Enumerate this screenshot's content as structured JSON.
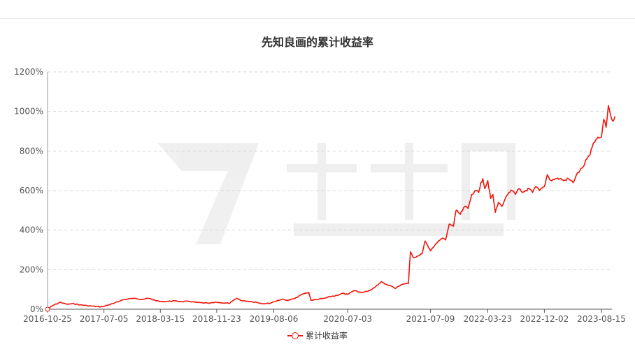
{
  "chart_data": {
    "type": "line",
    "title": "先知良画的累计收益率",
    "x_tick_labels": [
      "2016-10-25",
      "2017-07-05",
      "2018-03-15",
      "2018-11-23",
      "2019-08-06",
      "2020-07-03",
      "2021-07-09",
      "2022-03-23",
      "2022-12-02",
      "2023-08-15"
    ],
    "y_tick_labels": [
      "0%",
      "200%",
      "400%",
      "600%",
      "800%",
      "1000%",
      "1200%"
    ],
    "ylim": [
      0,
      1200
    ],
    "y_unit": "%",
    "grid": true,
    "legend_position": "bottom",
    "series": [
      {
        "name": "累计收益率",
        "color": "#f0140a",
        "points": [
          [
            "2016-10-25",
            0
          ],
          [
            "2016-11-20",
            20
          ],
          [
            "2016-12-20",
            35
          ],
          [
            "2017-01-20",
            25
          ],
          [
            "2017-02-20",
            28
          ],
          [
            "2017-03-20",
            22
          ],
          [
            "2017-04-20",
            18
          ],
          [
            "2017-05-20",
            15
          ],
          [
            "2017-06-20",
            12
          ],
          [
            "2017-07-05",
            15
          ],
          [
            "2017-08-20",
            30
          ],
          [
            "2017-09-20",
            45
          ],
          [
            "2017-10-20",
            52
          ],
          [
            "2017-11-20",
            55
          ],
          [
            "2017-12-20",
            50
          ],
          [
            "2018-01-20",
            55
          ],
          [
            "2018-02-20",
            45
          ],
          [
            "2018-03-15",
            38
          ],
          [
            "2018-04-20",
            40
          ],
          [
            "2018-05-20",
            42
          ],
          [
            "2018-06-20",
            38
          ],
          [
            "2018-07-20",
            40
          ],
          [
            "2018-08-20",
            35
          ],
          [
            "2018-09-20",
            32
          ],
          [
            "2018-10-20",
            30
          ],
          [
            "2018-11-23",
            35
          ],
          [
            "2018-12-20",
            32
          ],
          [
            "2019-01-20",
            30
          ],
          [
            "2019-02-20",
            55
          ],
          [
            "2019-03-20",
            42
          ],
          [
            "2019-04-20",
            40
          ],
          [
            "2019-05-20",
            35
          ],
          [
            "2019-06-20",
            28
          ],
          [
            "2019-07-20",
            30
          ],
          [
            "2019-08-06",
            38
          ],
          [
            "2019-09-10",
            50
          ],
          [
            "2019-10-10",
            45
          ],
          [
            "2019-11-10",
            55
          ],
          [
            "2019-12-10",
            75
          ],
          [
            "2020-01-10",
            85
          ],
          [
            "2020-01-20",
            45
          ],
          [
            "2020-02-20",
            50
          ],
          [
            "2020-03-20",
            55
          ],
          [
            "2020-04-20",
            65
          ],
          [
            "2020-05-20",
            70
          ],
          [
            "2020-06-10",
            80
          ],
          [
            "2020-07-03",
            75
          ],
          [
            "2020-08-01",
            95
          ],
          [
            "2020-09-01",
            85
          ],
          [
            "2020-10-01",
            90
          ],
          [
            "2020-11-01",
            110
          ],
          [
            "2020-12-01",
            140
          ],
          [
            "2020-12-20",
            125
          ],
          [
            "2021-01-10",
            120
          ],
          [
            "2021-02-01",
            105
          ],
          [
            "2021-03-01",
            125
          ],
          [
            "2021-03-20",
            130
          ],
          [
            "2021-04-01",
            130
          ],
          [
            "2021-04-10",
            290
          ],
          [
            "2021-04-25",
            260
          ],
          [
            "2021-05-15",
            270
          ],
          [
            "2021-06-01",
            280
          ],
          [
            "2021-06-15",
            345
          ],
          [
            "2021-07-01",
            310
          ],
          [
            "2021-07-09",
            295
          ],
          [
            "2021-08-01",
            330
          ],
          [
            "2021-09-01",
            360
          ],
          [
            "2021-09-15",
            350
          ],
          [
            "2021-10-01",
            430
          ],
          [
            "2021-10-20",
            420
          ],
          [
            "2021-11-01",
            500
          ],
          [
            "2021-11-20",
            480
          ],
          [
            "2021-12-10",
            520
          ],
          [
            "2021-12-25",
            510
          ],
          [
            "2022-01-10",
            580
          ],
          [
            "2022-01-25",
            600
          ],
          [
            "2022-02-10",
            590
          ],
          [
            "2022-02-20",
            640
          ],
          [
            "2022-03-01",
            660
          ],
          [
            "2022-03-10",
            610
          ],
          [
            "2022-03-23",
            650
          ],
          [
            "2022-04-05",
            560
          ],
          [
            "2022-04-15",
            580
          ],
          [
            "2022-04-26",
            490
          ],
          [
            "2022-05-10",
            540
          ],
          [
            "2022-05-25",
            520
          ],
          [
            "2022-06-10",
            560
          ],
          [
            "2022-06-25",
            590
          ],
          [
            "2022-07-10",
            600
          ],
          [
            "2022-07-25",
            580
          ],
          [
            "2022-08-10",
            610
          ],
          [
            "2022-08-25",
            590
          ],
          [
            "2022-09-10",
            600
          ],
          [
            "2022-09-25",
            610
          ],
          [
            "2022-10-10",
            590
          ],
          [
            "2022-10-25",
            620
          ],
          [
            "2022-11-10",
            600
          ],
          [
            "2022-12-02",
            620
          ],
          [
            "2022-12-15",
            680
          ],
          [
            "2022-12-31",
            650
          ],
          [
            "2023-01-20",
            660
          ],
          [
            "2023-02-10",
            660
          ],
          [
            "2023-02-28",
            650
          ],
          [
            "2023-03-20",
            660
          ],
          [
            "2023-04-10",
            640
          ],
          [
            "2023-04-25",
            680
          ],
          [
            "2023-05-10",
            700
          ],
          [
            "2023-05-25",
            720
          ],
          [
            "2023-06-10",
            760
          ],
          [
            "2023-06-25",
            780
          ],
          [
            "2023-07-10",
            840
          ],
          [
            "2023-07-25",
            860
          ],
          [
            "2023-08-15",
            870
          ],
          [
            "2023-08-25",
            960
          ],
          [
            "2023-09-05",
            920
          ],
          [
            "2023-09-15",
            1030
          ],
          [
            "2023-09-25",
            980
          ],
          [
            "2023-10-05",
            950
          ],
          [
            "2023-10-15",
            975
          ]
        ]
      }
    ]
  }
}
